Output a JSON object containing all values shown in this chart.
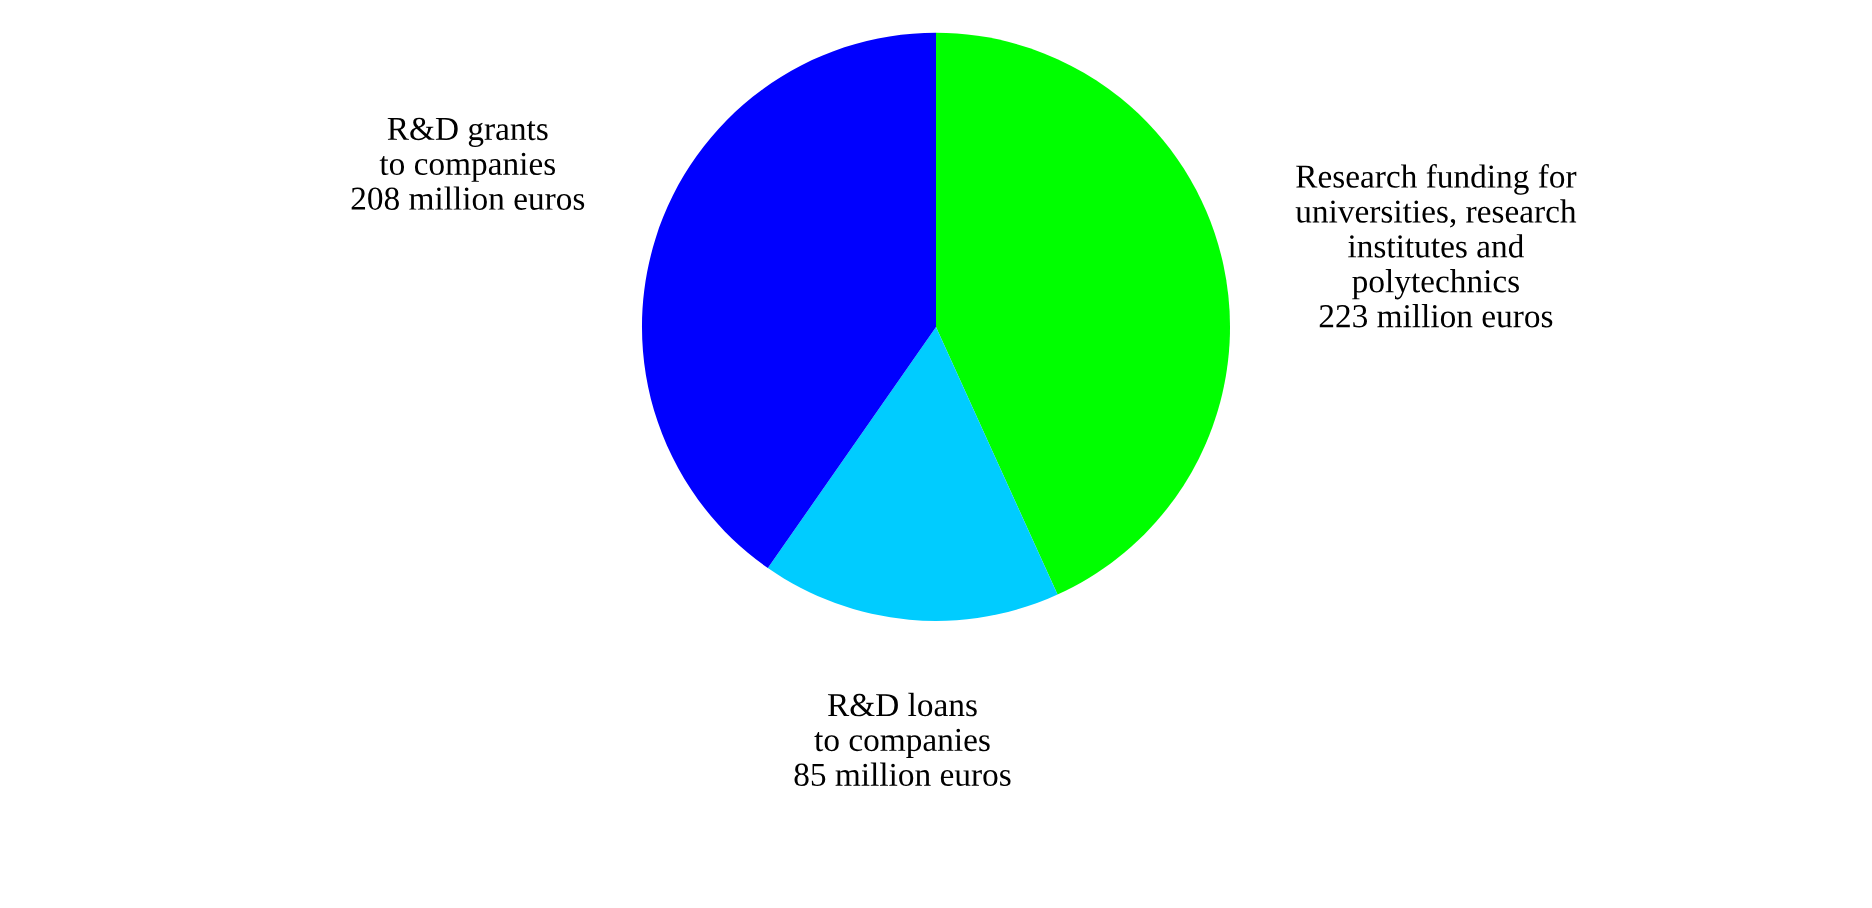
{
  "chart_data": {
    "type": "pie",
    "categories": [
      "Research funding for\nuniversities, research\ninstitutes and\npolytechnics",
      "R&D loans\nto companies",
      "R&D grants\nto companies"
    ],
    "values": [
      223,
      85,
      208
    ],
    "value_labels": [
      "223 million euros",
      "85 million euros",
      "208 million euros"
    ],
    "colors": [
      "#00ff00",
      "#00ccff",
      "#0000ff"
    ],
    "legend": false
  }
}
